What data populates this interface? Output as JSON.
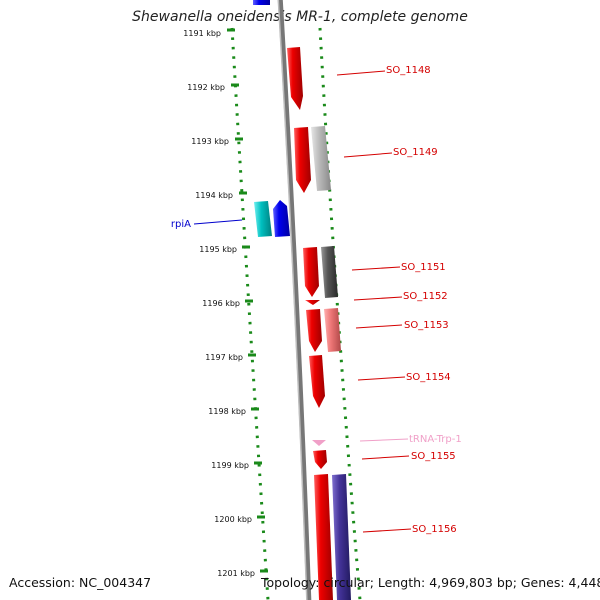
{
  "title": "Shewanella oneidensis MR-1, complete genome",
  "footer": {
    "accession": "Accession: NC_004347",
    "summary": "Topology: circular; Length: 4,969,803 bp; Genes: 4,448"
  },
  "ticks": [
    "1191 kbp",
    "1192 kbp",
    "1193 kbp",
    "1194 kbp",
    "1195 kbp",
    "1196 kbp",
    "1197 kbp",
    "1198 kbp",
    "1199 kbp",
    "1200 kbp",
    "1201 kbp"
  ],
  "gene_labels": [
    {
      "text": "SO_1148",
      "color": "#d40000"
    },
    {
      "text": "SO_1149",
      "color": "#d40000"
    },
    {
      "text": "rpiA",
      "color": "#0000cc"
    },
    {
      "text": "SO_1151",
      "color": "#d40000"
    },
    {
      "text": "SO_1152",
      "color": "#d40000"
    },
    {
      "text": "SO_1153",
      "color": "#d40000"
    },
    {
      "text": "SO_1154",
      "color": "#d40000"
    },
    {
      "text": "tRNA-Trp-1",
      "color": "#f0a0c8"
    },
    {
      "text": "SO_1155",
      "color": "#d40000"
    },
    {
      "text": "SO_1156",
      "color": "#d40000"
    }
  ],
  "colors": {
    "dotted_boundary": "#1a8a1a",
    "backbone": "#777777",
    "gene_red": "#ee0000",
    "gene_blue": "#0000ee",
    "gene_cyan": "#00c0c0",
    "gene_grey_light": "#bbbbbb",
    "gene_grey_dark": "#555555",
    "gene_pink": "#ee7777",
    "gene_purple": "#443399",
    "trna_pink": "#f0a0c8"
  }
}
